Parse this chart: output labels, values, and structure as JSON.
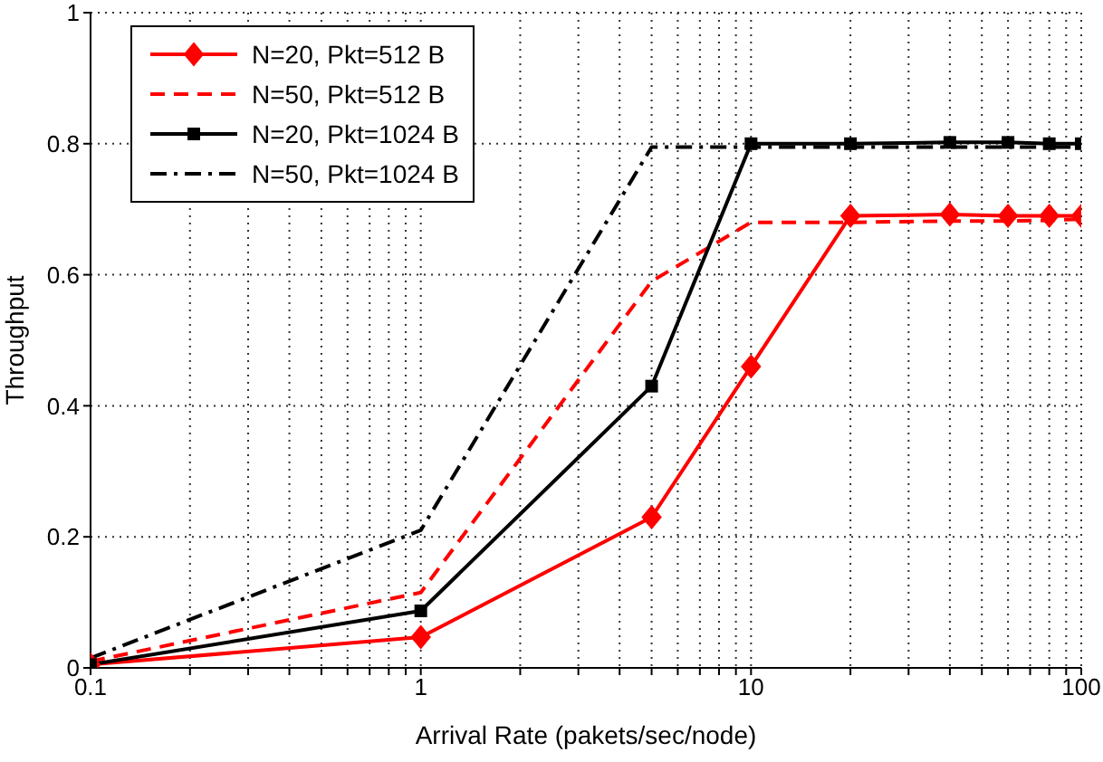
{
  "chart_data": {
    "type": "line",
    "xlabel": "Arrival Rate (pakets/sec/node)",
    "ylabel": "Throughput",
    "log": "x",
    "grid": true,
    "legend": "top left",
    "xlim": [
      0.1,
      100
    ],
    "xticks": [
      0.1,
      {
        "value": 0.2,
        "label": null
      },
      {
        "value": 0.3,
        "label": null
      },
      {
        "value": 0.4,
        "label": null
      },
      {
        "value": 0.5,
        "label": null
      },
      {
        "value": 0.6,
        "label": null
      },
      {
        "value": 0.7,
        "label": null
      },
      {
        "value": 0.8,
        "label": null
      },
      {
        "value": 0.9,
        "label": null
      },
      1,
      {
        "value": 2,
        "label": null
      },
      {
        "value": 3,
        "label": null
      },
      {
        "value": 4,
        "label": null
      },
      {
        "value": 5,
        "label": null
      },
      {
        "value": 6,
        "label": null
      },
      {
        "value": 7,
        "label": null
      },
      {
        "value": 8,
        "label": null
      },
      {
        "value": 9,
        "label": null
      },
      10,
      {
        "value": 20,
        "label": null
      },
      {
        "value": 30,
        "label": null
      },
      {
        "value": 40,
        "label": null
      },
      {
        "value": 50,
        "label": null
      },
      {
        "value": 60,
        "label": null
      },
      {
        "value": 70,
        "label": null
      },
      {
        "value": 80,
        "label": null
      },
      {
        "value": 90,
        "label": null
      },
      100
    ],
    "ylim": [
      0,
      1
    ],
    "yticks": [
      0,
      0.2,
      0.4,
      0.6,
      0.8,
      1
    ],
    "x": [
      0.1,
      1,
      5,
      10,
      20,
      40,
      60,
      80,
      100
    ],
    "series": [
      {
        "name": "N=20, Pkt=512 B",
        "color": "#ff0000",
        "marker": "diamond",
        "line_style": "solid",
        "values": [
          0.005,
          0.047,
          0.23,
          0.46,
          0.69,
          0.692,
          0.69,
          0.69,
          0.69
        ]
      },
      {
        "name": "N=50, Pkt=512 B",
        "color": "#ff0000",
        "marker": "none",
        "line_style": "dashed",
        "values": [
          0.01,
          0.115,
          0.59,
          0.68,
          0.68,
          0.682,
          0.682,
          0.683,
          0.685
        ]
      },
      {
        "name": "N=20, Pkt=1024 B",
        "color": "#000000",
        "marker": "square",
        "line_style": "solid",
        "values": [
          0.005,
          0.087,
          0.43,
          0.8,
          0.8,
          0.802,
          0.802,
          0.8,
          0.8
        ]
      },
      {
        "name": "N=50, Pkt=1024 B",
        "color": "#000000",
        "marker": "none",
        "line_style": "dashdot",
        "values": [
          0.015,
          0.21,
          0.795,
          0.795,
          0.795,
          0.795,
          0.795,
          0.795,
          0.795
        ]
      }
    ]
  }
}
